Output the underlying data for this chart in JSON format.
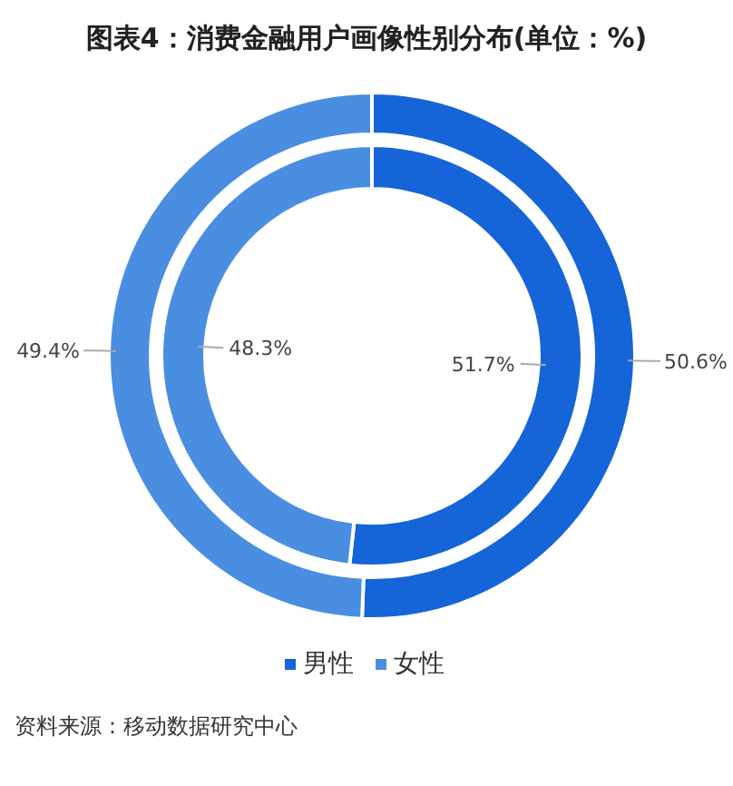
{
  "chart_data": {
    "type": "donut",
    "title": "图表4：消费金融用户画像性别分布(单位：%)",
    "categories": [
      "男性",
      "女性"
    ],
    "colors": [
      "#1565d8",
      "#4a8ee2"
    ],
    "series": [
      {
        "values": [
          50.6,
          49.4
        ],
        "value_labels": [
          "50.6%",
          "49.4%"
        ]
      },
      {
        "values": [
          51.7,
          48.3
        ],
        "value_labels": [
          "51.7%",
          "48.3%"
        ]
      }
    ],
    "legend": "bottom",
    "annotations": [
      "资料来源：移动数据研究中心"
    ]
  }
}
